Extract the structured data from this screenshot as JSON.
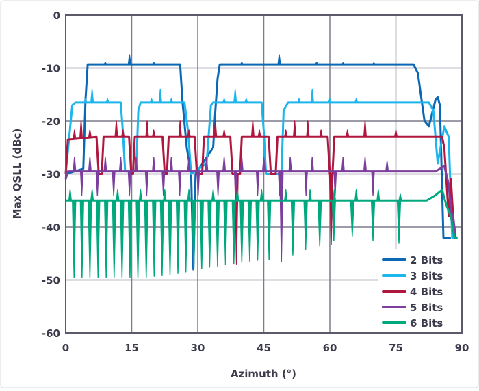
{
  "chart_data": {
    "type": "line",
    "title": "",
    "xlabel": "Azimuth (°)",
    "ylabel": "Max QSLL (dBc)",
    "xlim": [
      0,
      90
    ],
    "ylim": [
      -60,
      0
    ],
    "xticks": [
      0,
      15,
      30,
      45,
      60,
      75,
      90
    ],
    "yticks": [
      0,
      -10,
      -20,
      -30,
      -40,
      -50,
      -60
    ],
    "xtick_labels": [
      "0",
      "15",
      "30",
      "45",
      "60",
      "75",
      "90"
    ],
    "ytick_labels": [
      "0",
      "-10",
      "-20",
      "-30",
      "-40",
      "-50",
      "-60"
    ],
    "grid": true,
    "legend_position": "bottom-right",
    "series": [
      {
        "name": "2 Bits",
        "color": "#0a68b4",
        "points": [
          [
            0,
            -30
          ],
          [
            4,
            -29
          ],
          [
            4.5,
            -16
          ],
          [
            5,
            -9.3
          ],
          [
            26,
            -9.3
          ],
          [
            26.5,
            -16
          ],
          [
            27.5,
            -25
          ],
          [
            28.5,
            -30
          ],
          [
            29,
            -48
          ],
          [
            29.5,
            -30
          ],
          [
            33.5,
            -25
          ],
          [
            34,
            -18
          ],
          [
            34.5,
            -12
          ],
          [
            35,
            -9.3
          ],
          [
            79,
            -9.3
          ],
          [
            80,
            -11
          ],
          [
            81.5,
            -20
          ],
          [
            82.5,
            -21
          ],
          [
            84,
            -16
          ],
          [
            84.5,
            -15.5
          ],
          [
            85,
            -17
          ],
          [
            85.8,
            -42
          ],
          [
            87.5,
            -42
          ]
        ],
        "spikes": [
          [
            14.5,
            -7.5
          ],
          [
            48.5,
            -7.5
          ],
          [
            9,
            -8.9
          ],
          [
            20,
            -8.9
          ],
          [
            40,
            -8.9
          ],
          [
            57,
            -8.9
          ],
          [
            63,
            -9.0
          ],
          [
            70,
            -9.0
          ]
        ]
      },
      {
        "name": "3 Bits",
        "color": "#1cb5ec",
        "points": [
          [
            0,
            -30
          ],
          [
            1.5,
            -17
          ],
          [
            2.2,
            -16.5
          ],
          [
            12.5,
            -16.5
          ],
          [
            13,
            -22
          ],
          [
            13.5,
            -29.5
          ],
          [
            16,
            -29.5
          ],
          [
            16.5,
            -18
          ],
          [
            17,
            -16.5
          ],
          [
            27,
            -16.5
          ],
          [
            27.8,
            -22
          ],
          [
            28.5,
            -30
          ],
          [
            32,
            -28
          ],
          [
            33,
            -17
          ],
          [
            33.5,
            -16.5
          ],
          [
            44.5,
            -16.5
          ],
          [
            45,
            -22
          ],
          [
            45.5,
            -30
          ],
          [
            49,
            -30
          ],
          [
            49.5,
            -18
          ],
          [
            50.5,
            -16.5
          ],
          [
            82.5,
            -16.5
          ],
          [
            83.5,
            -18
          ],
          [
            84.5,
            -28
          ],
          [
            86,
            -21
          ],
          [
            87,
            -23
          ],
          [
            87.8,
            -42
          ],
          [
            89,
            -42
          ]
        ],
        "spikes": [
          [
            6,
            -14
          ],
          [
            21.5,
            -14
          ],
          [
            38.5,
            -14
          ],
          [
            56,
            -14
          ],
          [
            4.5,
            -15.8
          ],
          [
            9.5,
            -15.8
          ],
          [
            19.5,
            -15.8
          ],
          [
            24,
            -15.8
          ],
          [
            36,
            -15.8
          ],
          [
            41,
            -15.8
          ],
          [
            53,
            -15.8
          ],
          [
            60,
            -15.8
          ],
          [
            66,
            -15.8
          ]
        ]
      },
      {
        "name": "4 Bits",
        "color": "#b0173f",
        "points": [
          [
            0,
            -30
          ],
          [
            0.5,
            -23.5
          ],
          [
            7,
            -23
          ],
          [
            7.5,
            -30
          ],
          [
            8.2,
            -30
          ],
          [
            8.6,
            -23
          ],
          [
            14.4,
            -23
          ],
          [
            14.9,
            -30
          ],
          [
            15.3,
            -30
          ],
          [
            15.7,
            -23
          ],
          [
            22,
            -23
          ],
          [
            22.5,
            -30
          ],
          [
            23,
            -30
          ],
          [
            23.4,
            -23
          ],
          [
            29.3,
            -23
          ],
          [
            29.8,
            -30
          ],
          [
            31,
            -30
          ],
          [
            31.4,
            -23
          ],
          [
            37.4,
            -23
          ],
          [
            37.9,
            -30
          ],
          [
            39.6,
            -30
          ],
          [
            40,
            -23
          ],
          [
            46.1,
            -23
          ],
          [
            46.6,
            -30
          ],
          [
            47.7,
            -30
          ],
          [
            48.1,
            -23
          ],
          [
            59.5,
            -23
          ],
          [
            60,
            -30
          ],
          [
            60.6,
            -30
          ],
          [
            61,
            -23
          ],
          [
            85.5,
            -23
          ],
          [
            86,
            -25
          ],
          [
            87,
            -38
          ],
          [
            87.5,
            -31
          ],
          [
            88.3,
            -42
          ],
          [
            89,
            -42
          ]
        ],
        "spikes": [
          [
            3.5,
            -20
          ],
          [
            11.5,
            -20
          ],
          [
            18.5,
            -20
          ],
          [
            26,
            -20
          ],
          [
            34,
            -20
          ],
          [
            42.5,
            -20
          ],
          [
            52,
            -20
          ],
          [
            55,
            -20
          ],
          [
            68,
            -20
          ],
          [
            2,
            -21.7
          ],
          [
            5.5,
            -21.7
          ],
          [
            13,
            -21.7
          ],
          [
            20,
            -21.7
          ],
          [
            28,
            -21.7
          ],
          [
            36,
            -21.7
          ],
          [
            44,
            -21.7
          ],
          [
            50,
            -21.7
          ],
          [
            58,
            -21.7
          ],
          [
            64,
            -21.7
          ],
          [
            75,
            -21.7
          ],
          [
            38.8,
            -47
          ],
          [
            60.3,
            -43.4
          ]
        ]
      },
      {
        "name": "5 Bits",
        "color": "#7c3f9d",
        "points": [
          [
            0,
            -31
          ],
          [
            0.5,
            -29.5
          ],
          [
            84,
            -29.5
          ],
          [
            86,
            -28.5
          ],
          [
            87,
            -32
          ],
          [
            87.5,
            -37
          ],
          [
            88,
            -38
          ],
          [
            88.6,
            -42
          ],
          [
            89,
            -42
          ]
        ],
        "spikes": [
          [
            3.65,
            -34
          ],
          [
            7.2,
            -34
          ],
          [
            10.9,
            -34
          ],
          [
            14.5,
            -34
          ],
          [
            18.4,
            -34
          ],
          [
            22.2,
            -34
          ],
          [
            25.9,
            -34
          ],
          [
            30.1,
            -34
          ],
          [
            34.6,
            -34
          ],
          [
            38.6,
            -34
          ],
          [
            43.6,
            -34
          ],
          [
            48.6,
            -34
          ],
          [
            54.6,
            -34
          ],
          [
            61.2,
            -34
          ],
          [
            69.8,
            -34
          ],
          [
            49,
            -46.5
          ],
          [
            2,
            -26.8
          ],
          [
            5.5,
            -26.8
          ],
          [
            9,
            -26.8
          ],
          [
            12.5,
            -26.8
          ],
          [
            16,
            -26.8
          ],
          [
            20,
            -26.8
          ],
          [
            24,
            -26.8
          ],
          [
            28,
            -26.8
          ],
          [
            32,
            -26.8
          ],
          [
            36,
            -26.8
          ],
          [
            40,
            -26.8
          ],
          [
            45,
            -26.8
          ],
          [
            51,
            -26.8
          ],
          [
            56,
            -26.8
          ],
          [
            63,
            -26.8
          ],
          [
            68,
            -26.8
          ],
          [
            73,
            -27.6
          ]
        ]
      },
      {
        "name": "6 Bits",
        "color": "#00a87e",
        "points": [
          [
            0,
            -35
          ],
          [
            82,
            -35
          ],
          [
            84,
            -34
          ],
          [
            85.5,
            -33
          ],
          [
            86.5,
            -36
          ],
          [
            87.5,
            -38
          ],
          [
            88.3,
            -42
          ],
          [
            89,
            -42
          ]
        ],
        "spikes": [
          [
            1.9,
            -49.5
          ],
          [
            3.7,
            -49.5
          ],
          [
            5.5,
            -49.5
          ],
          [
            7.35,
            -49.5
          ],
          [
            9.2,
            -49.5
          ],
          [
            11,
            -49.5
          ],
          [
            12.8,
            -49.5
          ],
          [
            14.6,
            -49.5
          ],
          [
            16.4,
            -49.5
          ],
          [
            18.3,
            -49.5
          ],
          [
            20.1,
            -49.3
          ],
          [
            21.9,
            -49.2
          ],
          [
            23.7,
            -49
          ],
          [
            25.5,
            -48.8
          ],
          [
            27.3,
            -48.5
          ],
          [
            29.1,
            -48.2
          ],
          [
            30.9,
            -47.9
          ],
          [
            32.7,
            -47.6
          ],
          [
            34.5,
            -47.4
          ],
          [
            36.3,
            -47.1
          ],
          [
            38.2,
            -46.9
          ],
          [
            40,
            -46.7
          ],
          [
            41.8,
            -46.5
          ],
          [
            43.6,
            -46.3
          ],
          [
            46.2,
            -46.2
          ],
          [
            51.6,
            -45.3
          ],
          [
            54.5,
            -44.3
          ],
          [
            57.7,
            -43.6
          ],
          [
            60.9,
            -42.6
          ],
          [
            65.1,
            -41.7
          ],
          [
            69.8,
            -42.6
          ],
          [
            75.7,
            -43.1
          ],
          [
            1,
            -33
          ],
          [
            6,
            -33
          ],
          [
            11.8,
            -33
          ],
          [
            17,
            -33
          ],
          [
            22.5,
            -33
          ],
          [
            28,
            -33
          ],
          [
            33.5,
            -33
          ],
          [
            39,
            -33
          ],
          [
            44.5,
            -33
          ],
          [
            50,
            -33
          ],
          [
            55.5,
            -33
          ],
          [
            61,
            -33
          ],
          [
            66,
            -33
          ],
          [
            71,
            -33
          ],
          [
            76,
            -33.8
          ]
        ]
      }
    ]
  }
}
